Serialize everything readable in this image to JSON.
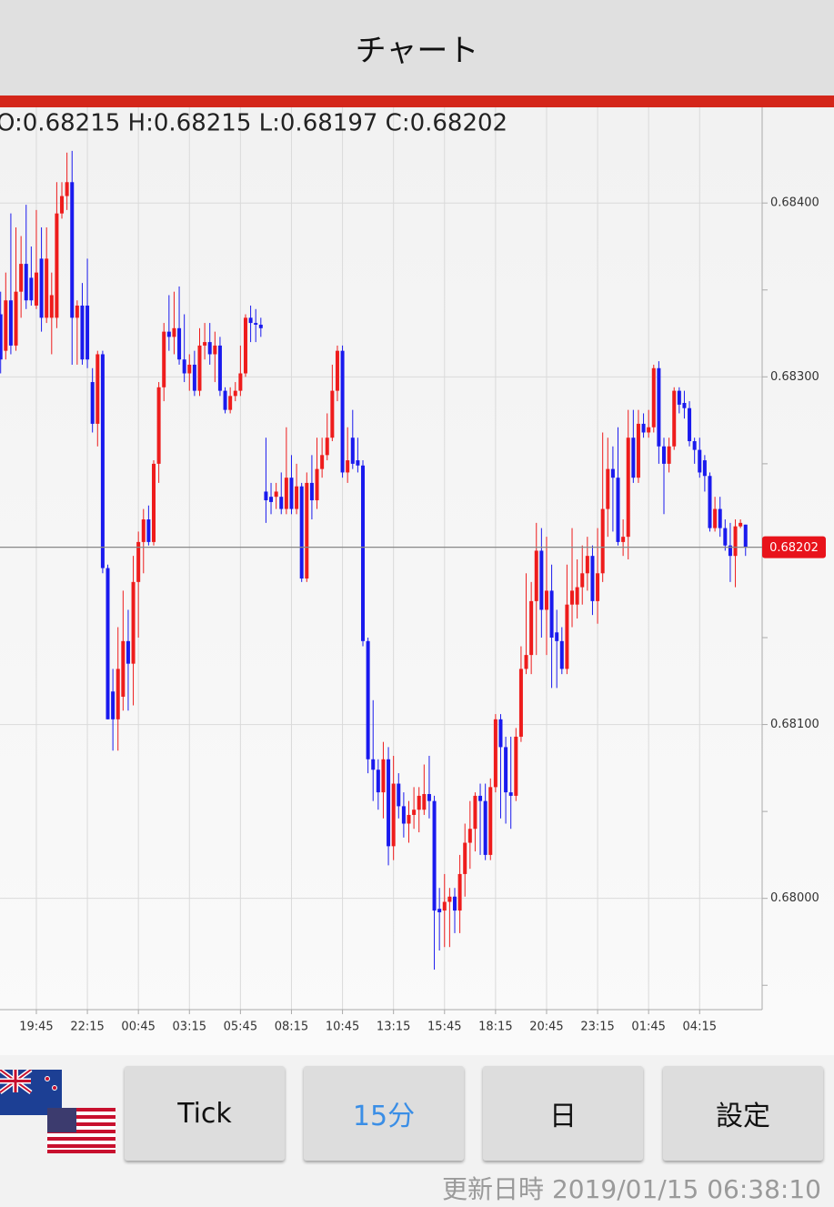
{
  "header": {
    "title": "チャート"
  },
  "chart_data": {
    "type": "candlestick",
    "ohlc_label": "O:0.68215 H:0.68215 L:0.68197 C:0.68202",
    "up_color": "#ee1c1c",
    "down_color": "#1a1aee",
    "categories": [
      null,
      null,
      null,
      null,
      null,
      null,
      null,
      "19:45",
      null,
      null,
      null,
      null,
      null,
      null,
      null,
      null,
      null,
      "22:15",
      null,
      null,
      null,
      null,
      null,
      null,
      null,
      null,
      null,
      "00:45",
      null,
      null,
      null,
      null,
      null,
      null,
      null,
      null,
      null,
      "03:15",
      null,
      null,
      null,
      null,
      null,
      null,
      null,
      null,
      null,
      "05:45",
      null,
      null,
      null,
      null,
      null,
      null,
      null,
      null,
      null,
      "08:15",
      null,
      null,
      null,
      null,
      null,
      null,
      null,
      null,
      null,
      "10:45",
      null,
      null,
      null,
      null,
      null,
      null,
      null,
      null,
      null,
      "13:15",
      null,
      null,
      null,
      null,
      null,
      null,
      null,
      null,
      null,
      "15:45",
      null,
      null,
      null,
      null,
      null,
      null,
      null,
      null,
      null,
      "18:15",
      null,
      null,
      null,
      null,
      null,
      null,
      null,
      null,
      null,
      "20:45",
      null,
      null,
      null,
      null,
      null,
      null,
      null,
      null,
      null,
      "23:15",
      null,
      null,
      null,
      null,
      null,
      null,
      null,
      null,
      null,
      "01:45",
      null,
      null,
      null,
      null,
      null,
      null,
      null,
      null,
      null,
      "04:15",
      null,
      null,
      null,
      null,
      null,
      null,
      null,
      null,
      null
    ],
    "open": [
      0.68336,
      0.68315,
      0.68344,
      0.68318,
      0.68349,
      0.68365,
      0.68357,
      0.68341,
      0.68368,
      0.68334,
      0.68334,
      0.68334,
      0.68394,
      0.68404,
      0.68412,
      0.68334,
      0.68341,
      0.68341,
      0.68297,
      0.68273,
      0.68313,
      0.6819,
      0.68119,
      0.68103,
      0.68116,
      0.68148,
      0.68135,
      0.68182,
      0.68205,
      0.68218,
      0.68205,
      0.6825,
      0.68294,
      0.68326,
      0.68323,
      0.68328,
      0.6831,
      0.68302,
      0.68307,
      0.68292,
      0.68318,
      0.6832,
      0.68313,
      0.68318,
      0.68292,
      0.68281,
      0.68289,
      0.68292,
      0.68302,
      0.68334,
      0.68331,
      0.6833,
      0.68234,
      0.68231,
      0.68231,
      0.68231,
      0.68224,
      0.68242,
      0.68224,
      0.68237,
      0.68184,
      0.68239,
      0.68229,
      0.68247,
      0.68255,
      0.68265,
      0.68292,
      0.68315,
      0.68245,
      0.68265,
      0.68252,
      0.68249,
      0.68148,
      0.6808,
      0.68074,
      0.68061,
      0.6808,
      0.6803,
      0.68066,
      0.68053,
      0.68043,
      0.68048,
      0.68051,
      0.68051,
      0.6806,
      0.68056,
      0.67994,
      0.67993,
      0.67998,
      0.68001,
      0.67993,
      0.68014,
      0.68032,
      0.6804,
      0.68059,
      0.68056,
      0.68025,
      0.68064,
      0.68103,
      0.68087,
      0.68061,
      0.68059,
      0.68093,
      0.68132,
      0.6814,
      0.68171,
      0.682,
      0.68166,
      0.68177,
      0.68153,
      0.68148,
      0.68132,
      0.68169,
      0.68169,
      0.68179,
      0.68187,
      0.68197,
      0.68171,
      0.68187,
      0.68224,
      0.68247,
      0.68242,
      0.68205,
      0.68208,
      0.68265,
      0.68242,
      0.68273,
      0.68268,
      0.68271,
      0.68305,
      0.6826,
      0.6825,
      0.6826,
      0.68292,
      0.68285,
      0.68282,
      0.68263,
      0.68258,
      0.68252,
      0.68243,
      0.68213,
      0.68224,
      0.68213,
      0.68203,
      0.68197,
      0.68214,
      0.68215
    ],
    "high": [
      0.68349,
      0.6836,
      0.68394,
      0.68386,
      0.68381,
      0.68399,
      0.68375,
      0.68396,
      0.68386,
      0.68386,
      0.6836,
      0.68412,
      0.68412,
      0.68429,
      0.6843,
      0.68344,
      0.68354,
      0.68368,
      0.68305,
      0.68315,
      0.68315,
      0.68192,
      0.68132,
      0.68156,
      0.68177,
      0.68166,
      0.68197,
      0.68211,
      0.68224,
      0.68226,
      0.68252,
      0.68297,
      0.68331,
      0.68347,
      0.68349,
      0.68352,
      0.68336,
      0.68313,
      0.68315,
      0.68328,
      0.68331,
      0.68331,
      0.68326,
      0.68323,
      0.68294,
      0.68294,
      0.68297,
      0.68318,
      0.68336,
      0.68341,
      0.68339,
      0.68334,
      0.68265,
      0.68239,
      0.68239,
      0.68245,
      0.68271,
      0.68255,
      0.6825,
      0.68239,
      0.68245,
      0.68255,
      0.68265,
      0.68265,
      0.68279,
      0.68307,
      0.68318,
      0.68318,
      0.68271,
      0.68281,
      0.68265,
      0.68252,
      0.6815,
      0.68114,
      0.6808,
      0.6809,
      0.68087,
      0.68082,
      0.68072,
      0.68061,
      0.68056,
      0.68064,
      0.68064,
      0.68077,
      0.68082,
      0.68059,
      0.68006,
      0.68014,
      0.68006,
      0.68006,
      0.68025,
      0.68043,
      0.68056,
      0.68061,
      0.68066,
      0.68066,
      0.68069,
      0.68106,
      0.68106,
      0.68093,
      0.68093,
      0.68098,
      0.68145,
      0.68187,
      0.68182,
      0.68216,
      0.68213,
      0.68208,
      0.68192,
      0.68166,
      0.68156,
      0.68192,
      0.68213,
      0.68195,
      0.68203,
      0.68208,
      0.68203,
      0.68213,
      0.68268,
      0.68265,
      0.6826,
      0.68271,
      0.68218,
      0.68281,
      0.68281,
      0.68281,
      0.68279,
      0.68281,
      0.68307,
      0.68309,
      0.68265,
      0.68265,
      0.68294,
      0.68294,
      0.68292,
      0.68286,
      0.68265,
      0.68265,
      0.68255,
      0.68245,
      0.68231,
      0.68231,
      0.68218,
      0.68216,
      0.68218,
      0.68218,
      0.68215
    ],
    "low": [
      0.68302,
      0.6831,
      0.68313,
      0.68315,
      0.68334,
      0.68339,
      0.68341,
      0.68339,
      0.68326,
      0.68331,
      0.68313,
      0.68328,
      0.68391,
      0.68396,
      0.68307,
      0.68307,
      0.68307,
      0.68305,
      0.68268,
      0.6826,
      0.68187,
      0.68103,
      0.68085,
      0.68085,
      0.68108,
      0.68108,
      0.68111,
      0.6815,
      0.68187,
      0.68203,
      0.68203,
      0.68239,
      0.68286,
      0.68315,
      0.68313,
      0.68307,
      0.68297,
      0.68292,
      0.68289,
      0.68289,
      0.6831,
      0.68307,
      0.68297,
      0.68289,
      0.68279,
      0.68279,
      0.68286,
      0.68289,
      0.683,
      0.6832,
      0.6832,
      0.68323,
      0.68216,
      0.68221,
      0.68224,
      0.68221,
      0.68221,
      0.68221,
      0.68221,
      0.68182,
      0.68182,
      0.68218,
      0.68224,
      0.68242,
      0.68252,
      0.68263,
      0.68286,
      0.68242,
      0.68239,
      0.68247,
      0.68245,
      0.68145,
      0.68072,
      0.68056,
      0.68051,
      0.68046,
      0.68019,
      0.68022,
      0.68046,
      0.68035,
      0.68032,
      0.6804,
      0.68038,
      0.68048,
      0.68046,
      0.67959,
      0.6797,
      0.67972,
      0.67972,
      0.6798,
      0.6798,
      0.68001,
      0.68017,
      0.68027,
      0.68025,
      0.68022,
      0.68022,
      0.68061,
      0.68046,
      0.68043,
      0.6804,
      0.68056,
      0.6809,
      0.68129,
      0.68129,
      0.6814,
      0.6815,
      0.6814,
      0.68121,
      0.68121,
      0.68129,
      0.68129,
      0.68156,
      0.68161,
      0.68169,
      0.68177,
      0.68163,
      0.68158,
      0.68182,
      0.68208,
      0.68211,
      0.68203,
      0.68197,
      0.68195,
      0.68239,
      0.68239,
      0.68265,
      0.68265,
      0.68268,
      0.6825,
      0.68221,
      0.68245,
      0.68258,
      0.68279,
      0.68276,
      0.6826,
      0.6825,
      0.68242,
      0.68234,
      0.68211,
      0.68211,
      0.68208,
      0.682,
      0.68182,
      0.68179,
      0.68213,
      0.68197
    ],
    "close": [
      0.6831,
      0.68344,
      0.68318,
      0.68349,
      0.68365,
      0.68344,
      0.68344,
      0.6836,
      0.68334,
      0.68368,
      0.68347,
      0.68394,
      0.68404,
      0.68412,
      0.68334,
      0.68341,
      0.6831,
      0.6831,
      0.68273,
      0.68313,
      0.6819,
      0.68103,
      0.68103,
      0.68132,
      0.68148,
      0.68135,
      0.68182,
      0.68205,
      0.68218,
      0.68205,
      0.6825,
      0.68294,
      0.68326,
      0.68323,
      0.68328,
      0.6831,
      0.68302,
      0.68307,
      0.68292,
      0.68318,
      0.6832,
      0.68313,
      0.68318,
      0.68292,
      0.68281,
      0.68289,
      0.68292,
      0.68302,
      0.68334,
      0.68331,
      0.6833,
      0.68328,
      0.68229,
      0.68228,
      0.68234,
      0.68224,
      0.68242,
      0.68224,
      0.68237,
      0.68184,
      0.68239,
      0.68229,
      0.68247,
      0.68255,
      0.68265,
      0.68292,
      0.68315,
      0.68245,
      0.68252,
      0.6825,
      0.68249,
      0.68148,
      0.6808,
      0.68074,
      0.68061,
      0.6808,
      0.6803,
      0.68066,
      0.68053,
      0.68043,
      0.68048,
      0.68051,
      0.68059,
      0.6806,
      0.68056,
      0.67993,
      0.67992,
      0.67998,
      0.68001,
      0.67993,
      0.68014,
      0.68032,
      0.6804,
      0.68059,
      0.68056,
      0.68025,
      0.68064,
      0.68103,
      0.68087,
      0.68061,
      0.68059,
      0.68093,
      0.68132,
      0.6814,
      0.68171,
      0.682,
      0.68166,
      0.68177,
      0.6815,
      0.68148,
      0.68132,
      0.68169,
      0.68177,
      0.68179,
      0.68187,
      0.68197,
      0.68171,
      0.68187,
      0.68224,
      0.68247,
      0.68242,
      0.68205,
      0.68208,
      0.68265,
      0.68242,
      0.68273,
      0.68268,
      0.68271,
      0.68305,
      0.6826,
      0.6825,
      0.6826,
      0.68292,
      0.68284,
      0.68282,
      0.68263,
      0.68258,
      0.68245,
      0.68243,
      0.68213,
      0.68224,
      0.68213,
      0.68203,
      0.68197,
      0.68214,
      0.68216,
      0.68202
    ],
    "ylim": [
      0.67936,
      0.68454
    ],
    "yticks": [
      {
        "value": 0.68,
        "label": "0.68000"
      },
      {
        "value": 0.681,
        "label": "0.68100"
      },
      {
        "value": 0.683,
        "label": "0.68300"
      },
      {
        "value": 0.684,
        "label": "0.68400"
      }
    ],
    "minor_yticks": [
      0.6795,
      0.6805,
      0.6815,
      0.682,
      0.6825,
      0.6835
    ],
    "current_price": {
      "value": 0.68202,
      "label": "0.68202"
    },
    "grid": true
  },
  "buttons": [
    "Tick",
    "15分",
    "日",
    "設定"
  ],
  "footer": {
    "updated_label": "更新日時",
    "updated": "2019/01/15 06:38:10"
  }
}
